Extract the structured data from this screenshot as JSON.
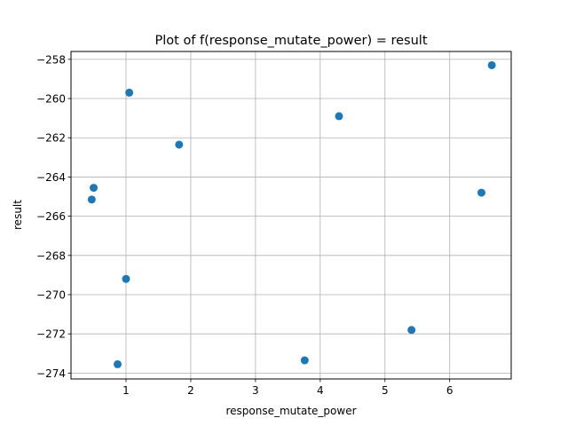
{
  "chart_data": {
    "type": "scatter",
    "title": "Plot of f(response_mutate_power) = result",
    "xlabel": "response_mutate_power",
    "ylabel": "result",
    "xlim": [
      0.15,
      6.95
    ],
    "ylim": [
      -274.3,
      -257.6
    ],
    "xticks": [
      1,
      2,
      3,
      4,
      5,
      6
    ],
    "xtick_labels": [
      "1",
      "2",
      "3",
      "4",
      "5",
      "6"
    ],
    "yticks": [
      -274,
      -272,
      -270,
      -268,
      -266,
      -264,
      -262,
      -260,
      -258
    ],
    "ytick_labels": [
      "−274",
      "−272",
      "−270",
      "−268",
      "−266",
      "−264",
      "−262",
      "−260",
      "−258"
    ],
    "grid": true,
    "marker_color": "#1f77b4",
    "points": [
      {
        "x": 0.47,
        "y": -265.15
      },
      {
        "x": 0.5,
        "y": -264.55
      },
      {
        "x": 0.87,
        "y": -273.55
      },
      {
        "x": 1.0,
        "y": -269.2
      },
      {
        "x": 1.05,
        "y": -259.7
      },
      {
        "x": 1.82,
        "y": -262.35
      },
      {
        "x": 3.76,
        "y": -273.35
      },
      {
        "x": 4.29,
        "y": -260.9
      },
      {
        "x": 5.41,
        "y": -271.8
      },
      {
        "x": 6.49,
        "y": -264.8
      },
      {
        "x": 6.65,
        "y": -258.3
      }
    ]
  }
}
